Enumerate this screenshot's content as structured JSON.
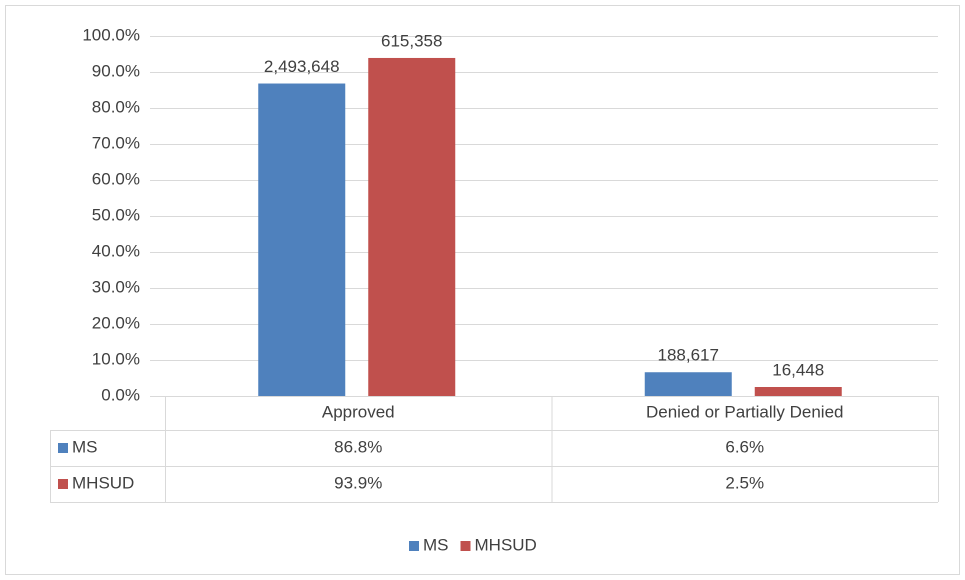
{
  "chart_data": {
    "type": "bar",
    "categories": [
      "Approved",
      "Denied or Partially Denied"
    ],
    "series": [
      {
        "name": "MS",
        "color": "#4f81bd",
        "values": [
          86.8,
          6.6
        ],
        "value_labels": [
          "86.8%",
          "6.6%"
        ],
        "data_labels": [
          "2,493,648",
          "188,617"
        ]
      },
      {
        "name": "MHSUD",
        "color": "#c0504d",
        "values": [
          93.9,
          2.5
        ],
        "value_labels": [
          "93.9%",
          "2.5%"
        ],
        "data_labels": [
          "615,358",
          "16,448"
        ]
      }
    ],
    "ylim": [
      0,
      100
    ],
    "yticks": [
      {
        "value": 0,
        "label": "0.0%"
      },
      {
        "value": 10,
        "label": "10.0%"
      },
      {
        "value": 20,
        "label": "20.0%"
      },
      {
        "value": 30,
        "label": "30.0%"
      },
      {
        "value": 40,
        "label": "40.0%"
      },
      {
        "value": 50,
        "label": "50.0%"
      },
      {
        "value": 60,
        "label": "60.0%"
      },
      {
        "value": 70,
        "label": "70.0%"
      },
      {
        "value": 80,
        "label": "80.0%"
      },
      {
        "value": 90,
        "label": "90.0%"
      },
      {
        "value": 100,
        "label": "100.0%"
      }
    ],
    "grid": true,
    "legend": "bottom",
    "data_table": true
  }
}
